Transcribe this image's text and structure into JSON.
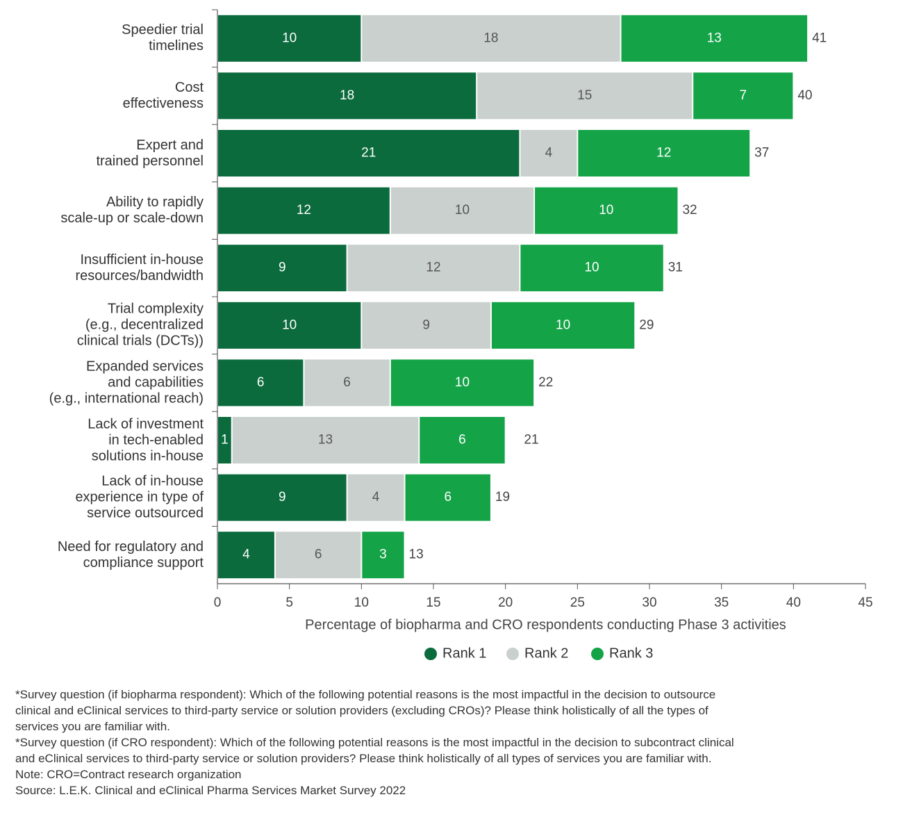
{
  "chart_data": {
    "type": "stacked-bar-horizontal",
    "categories": [
      "Speedier trial\ntimelines",
      "Cost\neffectiveness",
      "Expert and\ntrained personnel",
      "Ability to rapidly\nscale-up or scale-down",
      "Insufficient in-house\nresources/bandwidth",
      "Trial complexity\n(e.g., decentralized\nclinical trials (DCTs))",
      "Expanded services\nand capabilities\n(e.g., international reach)",
      "Lack of investment\nin tech-enabled\nsolutions in-house",
      "Lack of in-house\nexperience in type of\nservice outsourced",
      "Need for regulatory and\ncompliance support"
    ],
    "series": [
      {
        "name": "Rank 1",
        "color": "#0b6b3d",
        "values": [
          10,
          18,
          21,
          12,
          9,
          10,
          6,
          1,
          9,
          4
        ]
      },
      {
        "name": "Rank 2",
        "color": "#c9d0cd",
        "values": [
          18,
          15,
          4,
          10,
          12,
          9,
          6,
          13,
          4,
          6
        ]
      },
      {
        "name": "Rank 3",
        "color": "#14a347",
        "values": [
          13,
          7,
          12,
          10,
          10,
          10,
          10,
          6,
          6,
          3
        ]
      }
    ],
    "totals": [
      41,
      40,
      37,
      32,
      31,
      29,
      22,
      21,
      19,
      13
    ],
    "xlim": [
      0,
      45
    ],
    "xticks": [
      0,
      5,
      10,
      15,
      20,
      25,
      30,
      35,
      40,
      45
    ],
    "xlabel": "Percentage of biopharma and CRO respondents conducting Phase 3 activities",
    "legend": "bottom"
  },
  "notes": [
    "*Survey question (if biopharma respondent): Which of the following potential reasons is the most impactful in the decision to outsource",
    "clinical and eClinical services to third-party service or solution providers (excluding CROs)? Please think holistically of all the types of",
    "services you are familiar with.",
    "*Survey question (if CRO respondent): Which of the following potential reasons is the most impactful in the decision to subcontract clinical",
    "and eClinical services to third-party service or solution providers? Please think holistically of all types of services you are familiar with.",
    "Note: CRO=Contract research organization",
    "Source: L.E.K. Clinical and eClinical Pharma Services Market Survey 2022"
  ]
}
